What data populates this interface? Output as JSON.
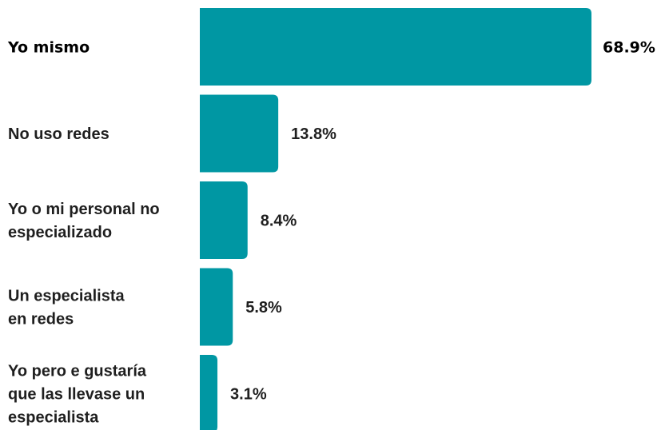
{
  "chart_data": {
    "type": "bar",
    "orientation": "horizontal",
    "categories": [
      "Yo mismo",
      "No uso redes",
      "Yo o mi personal no especializado",
      "Un especialista en redes",
      "Yo pero e gustaría que las llevase un especialista"
    ],
    "category_label_lines": [
      [
        "Yo mismo"
      ],
      [
        "No uso redes"
      ],
      [
        "Yo o mi personal no",
        "especializado"
      ],
      [
        "Un especialista",
        "en redes"
      ],
      [
        "Yo pero e gustaría",
        "que las llevase un",
        "especialista"
      ]
    ],
    "values": [
      68.9,
      13.8,
      8.4,
      5.8,
      3.1
    ],
    "value_labels": [
      "68.9%",
      "13.8%",
      "8.4%",
      "5.8%",
      "3.1%"
    ],
    "bar_color": "#0097a3",
    "xlim": [
      0,
      68.9
    ],
    "grid": false,
    "legend": "none"
  }
}
